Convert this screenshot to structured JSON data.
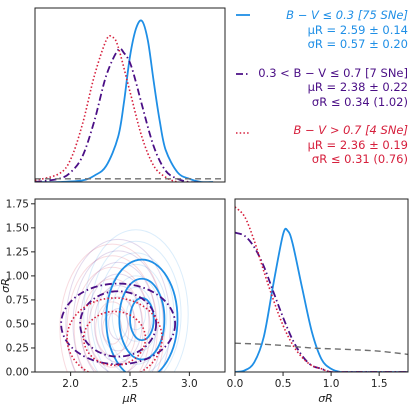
{
  "colors": {
    "blue": "#1f8fe6",
    "purple": "#4b0f86",
    "red": "#d61f3c",
    "gray": "#6f6f6f",
    "frame": "#222222"
  },
  "legend": [
    {
      "style": "solid",
      "color_key": "blue",
      "lines": [
        "B − V ≤ 0.3 [75 SNe]",
        "μR = 2.59 ± 0.14",
        "σR = 0.57 ± 0.20"
      ]
    },
    {
      "style": "dashdot",
      "color_key": "purple",
      "lines": [
        "0.3 < B − V ≤ 0.7 [7 SNe]",
        "μR = 2.38 ± 0.22",
        "σR ≤ 0.34 (1.02)"
      ]
    },
    {
      "style": "dotted",
      "color_key": "red",
      "lines": [
        "B − V > 0.7 [4 SNe]",
        "μR = 2.36 ± 0.19",
        "σR ≤ 0.31 (0.76)"
      ]
    }
  ],
  "chart_data": [
    {
      "panel": "top-left",
      "type": "line",
      "x_quantity": "μR",
      "xlim": [
        1.7,
        3.3
      ],
      "y_ticks_visible": false,
      "series": [
        {
          "style": "blue-solid",
          "x": [
            1.7,
            1.9,
            2.1,
            2.2,
            2.3,
            2.4,
            2.45,
            2.5,
            2.55,
            2.6,
            2.65,
            2.7,
            2.75,
            2.8,
            2.9,
            3.0,
            3.1,
            3.2
          ],
          "y": [
            0.0,
            0.0,
            0.01,
            0.04,
            0.1,
            0.28,
            0.5,
            0.78,
            0.95,
            1.0,
            0.88,
            0.62,
            0.38,
            0.2,
            0.06,
            0.02,
            0.0,
            0.0
          ]
        },
        {
          "style": "purple-dashdot",
          "x": [
            1.7,
            1.9,
            2.0,
            2.1,
            2.2,
            2.3,
            2.4,
            2.45,
            2.5,
            2.55,
            2.6,
            2.7,
            2.8,
            2.9,
            3.0,
            3.1
          ],
          "y": [
            0.0,
            0.02,
            0.06,
            0.16,
            0.38,
            0.66,
            0.82,
            0.8,
            0.74,
            0.62,
            0.48,
            0.22,
            0.07,
            0.02,
            0.0,
            0.0
          ]
        },
        {
          "style": "red-dotted",
          "x": [
            1.7,
            1.9,
            2.0,
            2.1,
            2.2,
            2.3,
            2.35,
            2.4,
            2.5,
            2.6,
            2.7,
            2.8,
            2.9,
            3.0
          ],
          "y": [
            0.01,
            0.05,
            0.14,
            0.36,
            0.66,
            0.88,
            0.9,
            0.84,
            0.56,
            0.28,
            0.1,
            0.03,
            0.0,
            0.0
          ]
        },
        {
          "style": "gray-dashed",
          "x": [
            1.7,
            3.3
          ],
          "y": [
            0.02,
            0.02
          ]
        }
      ]
    },
    {
      "panel": "bottom-left",
      "type": "contour",
      "xlabel": "μR",
      "ylabel": "σR",
      "xlim": [
        1.7,
        3.3
      ],
      "ylim": [
        0.0,
        1.8
      ],
      "xticks": [
        "2.0",
        "2.5",
        "3.0"
      ],
      "yticks": [
        "0.00",
        "0.25",
        "0.50",
        "0.75",
        "1.00",
        "1.25",
        "1.50",
        "1.75"
      ],
      "series": [
        {
          "style": "blue-solid",
          "cx": 2.6,
          "cy": 0.55,
          "rx": [
            0.3,
            0.19,
            0.1
          ],
          "ry": [
            0.62,
            0.42,
            0.22
          ]
        },
        {
          "style": "purple-dashdot",
          "cx": 2.4,
          "cy": 0.5,
          "rx": [
            0.48,
            0.32
          ],
          "ry": [
            0.42,
            0.34
          ]
        },
        {
          "style": "red-dotted",
          "cx": 2.37,
          "cy": 0.35,
          "rx": [
            0.4,
            0.26
          ],
          "ry": [
            0.42,
            0.28
          ]
        }
      ]
    },
    {
      "panel": "bottom-right",
      "type": "line",
      "xlabel": "σR",
      "xlim": [
        0.0,
        1.8
      ],
      "xticks": [
        "0.0",
        "0.5",
        "1.0",
        "1.5"
      ],
      "y_ticks_visible": false,
      "series": [
        {
          "style": "blue-solid",
          "x": [
            0.0,
            0.1,
            0.2,
            0.3,
            0.4,
            0.5,
            0.55,
            0.6,
            0.7,
            0.8,
            0.9,
            1.0,
            1.1,
            1.2,
            1.8
          ],
          "y": [
            0.0,
            0.01,
            0.06,
            0.22,
            0.55,
            0.86,
            0.88,
            0.8,
            0.52,
            0.25,
            0.08,
            0.02,
            0.0,
            0.0,
            0.0
          ]
        },
        {
          "style": "purple-dashdot",
          "x": [
            0.0,
            0.1,
            0.2,
            0.3,
            0.4,
            0.5,
            0.6,
            0.7,
            0.8,
            0.9,
            1.0,
            1.2,
            1.8
          ],
          "y": [
            0.87,
            0.85,
            0.78,
            0.66,
            0.5,
            0.34,
            0.2,
            0.1,
            0.04,
            0.02,
            0.0,
            0.0,
            0.0
          ]
        },
        {
          "style": "red-dotted",
          "x": [
            0.0,
            0.1,
            0.2,
            0.3,
            0.4,
            0.5,
            0.6,
            0.7,
            0.8,
            0.9,
            1.0,
            1.2,
            1.8
          ],
          "y": [
            1.03,
            0.97,
            0.82,
            0.63,
            0.45,
            0.29,
            0.17,
            0.09,
            0.04,
            0.02,
            0.0,
            0.0,
            0.0
          ]
        },
        {
          "style": "gray-dashed",
          "x": [
            0.0,
            0.4,
            0.8,
            1.2,
            1.5,
            1.8
          ],
          "y": [
            0.18,
            0.17,
            0.15,
            0.14,
            0.13,
            0.11
          ]
        }
      ]
    }
  ]
}
